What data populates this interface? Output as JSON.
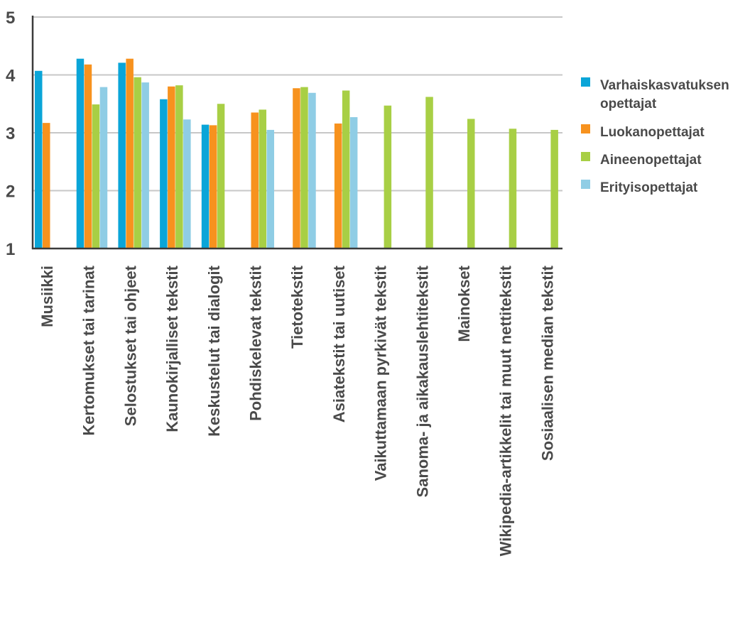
{
  "chart_data": {
    "type": "bar",
    "ylim": [
      1,
      5
    ],
    "yticks": [
      1,
      2,
      3,
      4,
      5
    ],
    "grid": true,
    "legend_position": "right",
    "categories": [
      "Musiikki",
      "Kertomukset tai tarinat",
      "Selostukset tai ohjeet",
      "Kaunokirjalliset tekstit",
      "Keskustelut tai dialogit",
      "Pohdiskelevat tekstit",
      "Tietotekstit",
      "Asiatekstit tai uutiset",
      "Vaikuttamaan pyrkivät tekstit",
      "Sanoma- ja aikakauslehtitekstit",
      "Mainokset",
      "Wikipedia-artikkelit tai muut nettitekstit",
      "Sosiaalisen median tekstit"
    ],
    "series": [
      {
        "name": "Varhaiskasvatuksen opettajat",
        "name_lines": [
          "Varhaiskasvatuksen",
          "opettajat"
        ],
        "color": "#0aa5d8",
        "values": [
          4.07,
          4.28,
          4.21,
          3.58,
          3.14,
          null,
          null,
          null,
          null,
          null,
          null,
          null,
          null
        ]
      },
      {
        "name": "Luokanopettajat",
        "name_lines": [
          "Luokanopettajat"
        ],
        "color": "#f7921e",
        "values": [
          3.17,
          4.18,
          4.28,
          3.8,
          3.13,
          3.35,
          3.77,
          3.16,
          null,
          null,
          null,
          null,
          null
        ]
      },
      {
        "name": "Aineenopettajat",
        "name_lines": [
          "Aineenopettajat"
        ],
        "color": "#a8cf45",
        "values": [
          null,
          3.49,
          3.96,
          3.82,
          3.5,
          3.4,
          3.79,
          3.73,
          3.47,
          3.62,
          3.24,
          3.07,
          3.05
        ]
      },
      {
        "name": "Erityisopettajat",
        "name_lines": [
          "Erityisopettajat"
        ],
        "color": "#8fcde5",
        "values": [
          null,
          3.79,
          3.87,
          3.23,
          null,
          3.05,
          3.69,
          3.27,
          null,
          null,
          null,
          null,
          null
        ]
      }
    ],
    "colors": {
      "grid": "#c7c7c7",
      "axis": "#3a3a3a",
      "text": "#4a4a4a"
    }
  }
}
